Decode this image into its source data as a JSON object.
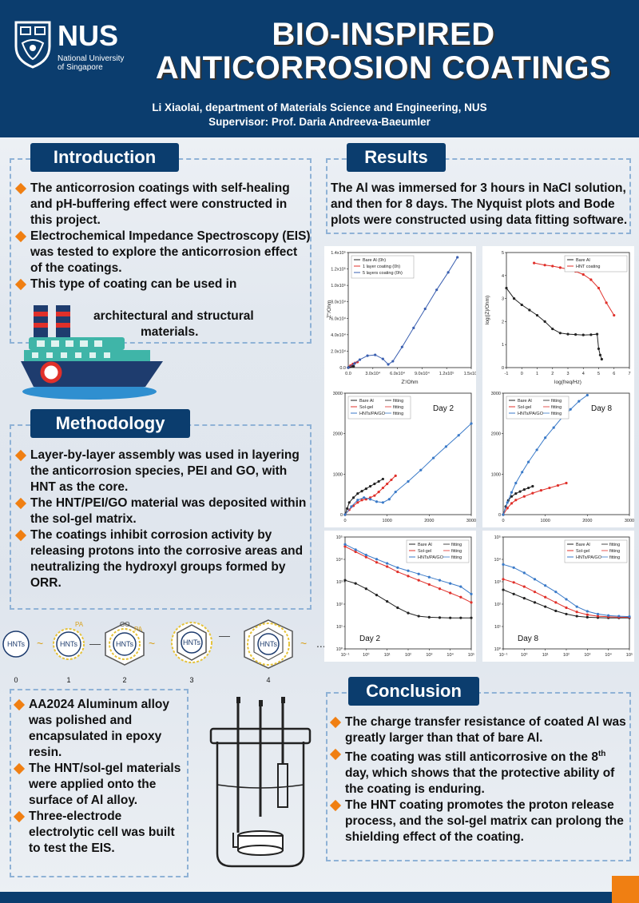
{
  "header": {
    "logo_text": "NUS",
    "logo_sub": "National University\nof Singapore",
    "title_line1": "BIO-INSPIRED",
    "title_line2": "ANTICORROSION COATINGS",
    "author": "Li Xiaolai, department of Materials Science and Engineering, NUS",
    "supervisor": "Supervisor: Prof. Daria Andreeva-Baeumler"
  },
  "introduction": {
    "heading": "Introduction",
    "bullets": [
      "The anticorrosion coatings with self-healing and pH-buffering effect were constructed in this project.",
      "Electrochemical Impedance Spectroscopy (EIS) was tested to explore the anticorrosion effect of the coatings.",
      "This type of coating can be used in"
    ],
    "cont1": "architectural and structural",
    "cont2": "materials."
  },
  "methodology": {
    "heading": "Methodology",
    "bullets": [
      "Layer-by-layer assembly was used in layering the anticorrosion species, PEI and GO, with HNT as the core.",
      "The HNT/PEI/GO material was deposited within the sol-gel matrix.",
      "The coatings inhibit corrosion activity by releasing protons into the corrosive areas and neutralizing the hydroxyl groups formed by ORR."
    ],
    "diagram": {
      "core_label": "HNTs",
      "pa_label": "PA",
      "go_label": "GO",
      "steps": [
        "0",
        "1",
        "2",
        "3",
        "4"
      ],
      "ellipsis": "..."
    },
    "bullets2": [
      "AA2024 Aluminum alloy was polished and encapsulated in epoxy resin.",
      "The HNT/sol-gel materials were applied onto the surface of Al alloy.",
      "Three-electrode electrolytic cell was built to test the EIS."
    ]
  },
  "results": {
    "heading": "Results",
    "text": "The Al was immersed for 3 hours in NaCl solution, and then for 8 days. The Nyquist plots and Bode plots were constructed using data fitting software."
  },
  "conclusion": {
    "heading": "Conclusion",
    "b1": "The charge transfer resistance of coated Al was greatly larger than that of bare Al.",
    "b2_pre": "The coating was still anticorrosive on the 8",
    "b2_sup": "th",
    "b2_post": " day, which shows that the protective ability of the coating is enduring.",
    "b3": "The HNT coating promotes the proton release process, and the sol-gel matrix can prolong the shielding effect of the coating."
  },
  "colors": {
    "navy": "#0b3d6e",
    "orange": "#f07f12",
    "dash": "#8fb2d6"
  },
  "chart_data": [
    {
      "type": "line",
      "xlabel": "Z'/Ohm",
      "ylabel": "-Z''/Ohm",
      "xticks": [
        "0.0",
        "3.0x10⁴",
        "6.0x10⁴",
        "9.0x10⁴",
        "1.2x10⁵",
        "1.5x10⁵"
      ],
      "yticks": [
        "0.0",
        "2.0x10⁴",
        "4.0x10⁴",
        "6.0x10⁴",
        "8.0x10⁴",
        "1.0x10⁵",
        "1.2x10⁵",
        "1.4x10⁵"
      ],
      "xlim": [
        0,
        160000
      ],
      "ylim": [
        0,
        145000
      ],
      "legend": "top-left",
      "series": [
        {
          "name": "Bare Al (0h)",
          "color": "#222222",
          "x": [
            0,
            1500,
            3000,
            5000,
            7000
          ],
          "y": [
            0,
            800,
            1400,
            1800,
            1600
          ]
        },
        {
          "name": "1 layer coating (0h)",
          "color": "#e0302a",
          "x": [
            0,
            3000,
            6000,
            9000,
            12000
          ],
          "y": [
            0,
            2500,
            4500,
            6000,
            7000
          ]
        },
        {
          "name": "5 layers coating (0h)",
          "color": "#3a5fb0",
          "x": [
            0,
            8000,
            15000,
            25000,
            35000,
            45000,
            52000,
            58000,
            70000,
            85000,
            100000,
            115000,
            130000,
            142000
          ],
          "y": [
            0,
            5000,
            10000,
            15000,
            16000,
            11000,
            4000,
            8000,
            26000,
            50000,
            74000,
            98000,
            120000,
            139000
          ]
        }
      ]
    },
    {
      "type": "line",
      "xlabel": "log(freq/Hz)",
      "ylabel": "log(|Z|/Ohm)",
      "xticks": [
        "-1",
        "0",
        "1",
        "2",
        "3",
        "4",
        "5",
        "6",
        "7"
      ],
      "yticks": [
        "0",
        "1",
        "2",
        "3",
        "4",
        "5"
      ],
      "xlim": [
        -1,
        7
      ],
      "ylim": [
        0,
        5.5
      ],
      "legend": "top-right",
      "series": [
        {
          "name": "Bare Al",
          "color": "#222222",
          "x": [
            -1,
            -0.5,
            0,
            0.5,
            1,
            1.5,
            2,
            2.5,
            3,
            3.5,
            4,
            4.5,
            4.9,
            5.0,
            5.1,
            5.2
          ],
          "y": [
            3.8,
            3.3,
            3.0,
            2.75,
            2.5,
            2.2,
            1.85,
            1.65,
            1.6,
            1.58,
            1.56,
            1.57,
            1.6,
            0.9,
            0.6,
            0.4
          ]
        },
        {
          "name": "HNT coating",
          "color": "#e0302a",
          "x": [
            0.8,
            1.5,
            2,
            2.5,
            3,
            3.5,
            4,
            4.5,
            5,
            5.5,
            6
          ],
          "y": [
            5.0,
            4.9,
            4.85,
            4.78,
            4.7,
            4.6,
            4.45,
            4.2,
            3.8,
            3.1,
            2.5
          ]
        }
      ]
    },
    {
      "type": "line",
      "annotation": "Day 2",
      "xticks": [
        "0",
        "1000",
        "2000",
        "3000"
      ],
      "yticks": [
        "0",
        "1000",
        "2000",
        "3000"
      ],
      "xlim": [
        0,
        3000
      ],
      "ylim": [
        0,
        3000
      ],
      "legend": "top-left",
      "legend_extra": "fitting",
      "series": [
        {
          "name": "Bare Al",
          "color": "#222222",
          "x": [
            0,
            50,
            100,
            200,
            300,
            400,
            500,
            600,
            700,
            800,
            900
          ],
          "y": [
            0,
            150,
            300,
            420,
            520,
            580,
            640,
            700,
            760,
            820,
            880
          ]
        },
        {
          "name": "Sol-gel",
          "color": "#e0302a",
          "x": [
            0,
            100,
            200,
            300,
            400,
            500,
            600,
            700,
            800,
            900,
            1000,
            1100,
            1200
          ],
          "y": [
            0,
            120,
            220,
            300,
            360,
            380,
            420,
            470,
            560,
            660,
            760,
            860,
            960
          ]
        },
        {
          "name": "HNTs/PA/GO",
          "color": "#3a7ac8",
          "x": [
            0,
            150,
            300,
            450,
            600,
            750,
            900,
            1050,
            1200,
            1500,
            1800,
            2100,
            2400,
            2700,
            3000
          ],
          "y": [
            0,
            200,
            360,
            420,
            380,
            320,
            300,
            380,
            560,
            820,
            1100,
            1400,
            1680,
            1960,
            2250
          ]
        }
      ]
    },
    {
      "type": "line",
      "annotation": "Day 8",
      "xticks": [
        "0",
        "1000",
        "2000",
        "3000"
      ],
      "yticks": [
        "0",
        "1000",
        "2000",
        "3000"
      ],
      "xlim": [
        0,
        3000
      ],
      "ylim": [
        0,
        3000
      ],
      "legend": "top-left",
      "legend_extra": "fitting",
      "series": [
        {
          "name": "Bare Al",
          "color": "#222222",
          "x": [
            0,
            60,
            120,
            200,
            300,
            400,
            500,
            600,
            700
          ],
          "y": [
            0,
            200,
            350,
            450,
            520,
            570,
            620,
            660,
            700
          ]
        },
        {
          "name": "Sol-gel",
          "color": "#e0302a",
          "x": [
            0,
            100,
            200,
            300,
            500,
            700,
            900,
            1100,
            1300,
            1500
          ],
          "y": [
            0,
            160,
            280,
            360,
            450,
            530,
            600,
            660,
            720,
            780
          ]
        },
        {
          "name": "HNTs/PA/GO",
          "color": "#3a7ac8",
          "x": [
            0,
            100,
            200,
            300,
            450,
            600,
            800,
            1000,
            1200,
            1400,
            1600,
            1800,
            2000
          ],
          "y": [
            0,
            300,
            550,
            780,
            1050,
            1300,
            1600,
            1900,
            2150,
            2400,
            2600,
            2800,
            2950
          ]
        }
      ]
    },
    {
      "type": "line",
      "annotation": "Day 2",
      "yscale": "log",
      "xscale": "log",
      "xticks": [
        "10⁻¹",
        "10⁰",
        "10¹",
        "10²",
        "10³",
        "10⁴",
        "10⁵"
      ],
      "yticks": [
        "10⁰",
        "10¹",
        "10²",
        "10³",
        "10⁴",
        "10⁵"
      ],
      "xlim": [
        -1,
        5
      ],
      "ylim": [
        0,
        5.3
      ],
      "legend": "top-right",
      "legend_extra": "fitting",
      "series": [
        {
          "name": "Bare Al",
          "color": "#222222",
          "x": [
            -1,
            -0.5,
            0,
            0.5,
            1,
            1.5,
            2,
            2.5,
            3,
            3.5,
            4,
            4.5,
            5
          ],
          "y": [
            3.25,
            3.1,
            2.85,
            2.55,
            2.25,
            1.95,
            1.7,
            1.55,
            1.5,
            1.48,
            1.47,
            1.47,
            1.47
          ]
        },
        {
          "name": "Sol-gel",
          "color": "#e0302a",
          "x": [
            -1,
            -0.5,
            0,
            0.5,
            1,
            1.5,
            2,
            2.5,
            3,
            3.5,
            4,
            4.5,
            5
          ],
          "y": [
            4.85,
            4.6,
            4.35,
            4.1,
            3.9,
            3.65,
            3.45,
            3.25,
            3.05,
            2.85,
            2.65,
            2.45,
            2.2
          ]
        },
        {
          "name": "HNTs/PA/GO",
          "color": "#3a7ac8",
          "x": [
            -1,
            -0.5,
            0,
            0.5,
            1,
            1.5,
            2,
            2.5,
            3,
            3.5,
            4,
            4.5,
            5
          ],
          "y": [
            4.95,
            4.7,
            4.45,
            4.25,
            4.05,
            3.85,
            3.7,
            3.55,
            3.4,
            3.25,
            3.1,
            2.95,
            2.6
          ]
        }
      ]
    },
    {
      "type": "line",
      "annotation": "Day 8",
      "yscale": "log",
      "xscale": "log",
      "xticks": [
        "10⁻¹",
        "10⁰",
        "10¹",
        "10²",
        "10³",
        "10⁴",
        "10⁵"
      ],
      "yticks": [
        "10⁰",
        "10¹",
        "10²",
        "10³",
        "10⁴",
        "10⁵"
      ],
      "xlim": [
        -1,
        5
      ],
      "ylim": [
        0,
        5.3
      ],
      "legend": "top-right",
      "legend_extra": "fitting",
      "series": [
        {
          "name": "Bare Al",
          "color": "#222222",
          "x": [
            -1,
            -0.5,
            0,
            0.5,
            1,
            1.5,
            2,
            2.5,
            3,
            3.5,
            4,
            4.5,
            5
          ],
          "y": [
            2.8,
            2.6,
            2.4,
            2.2,
            2.0,
            1.8,
            1.65,
            1.55,
            1.5,
            1.48,
            1.47,
            1.47,
            1.47
          ]
        },
        {
          "name": "Sol-gel",
          "color": "#e0302a",
          "x": [
            -1,
            -0.5,
            0,
            0.5,
            1,
            1.5,
            2,
            2.5,
            3,
            3.5,
            4,
            4.5,
            5
          ],
          "y": [
            3.3,
            3.15,
            2.95,
            2.7,
            2.45,
            2.2,
            1.95,
            1.75,
            1.62,
            1.55,
            1.52,
            1.5,
            1.5
          ]
        },
        {
          "name": "HNTs/PA/GO",
          "color": "#3a7ac8",
          "x": [
            -1,
            -0.5,
            0,
            0.5,
            1,
            1.5,
            2,
            2.5,
            3,
            3.5,
            4,
            4.5,
            5
          ],
          "y": [
            4.0,
            3.85,
            3.6,
            3.3,
            3.0,
            2.7,
            2.35,
            2.0,
            1.78,
            1.65,
            1.58,
            1.55,
            1.53
          ]
        }
      ]
    }
  ]
}
